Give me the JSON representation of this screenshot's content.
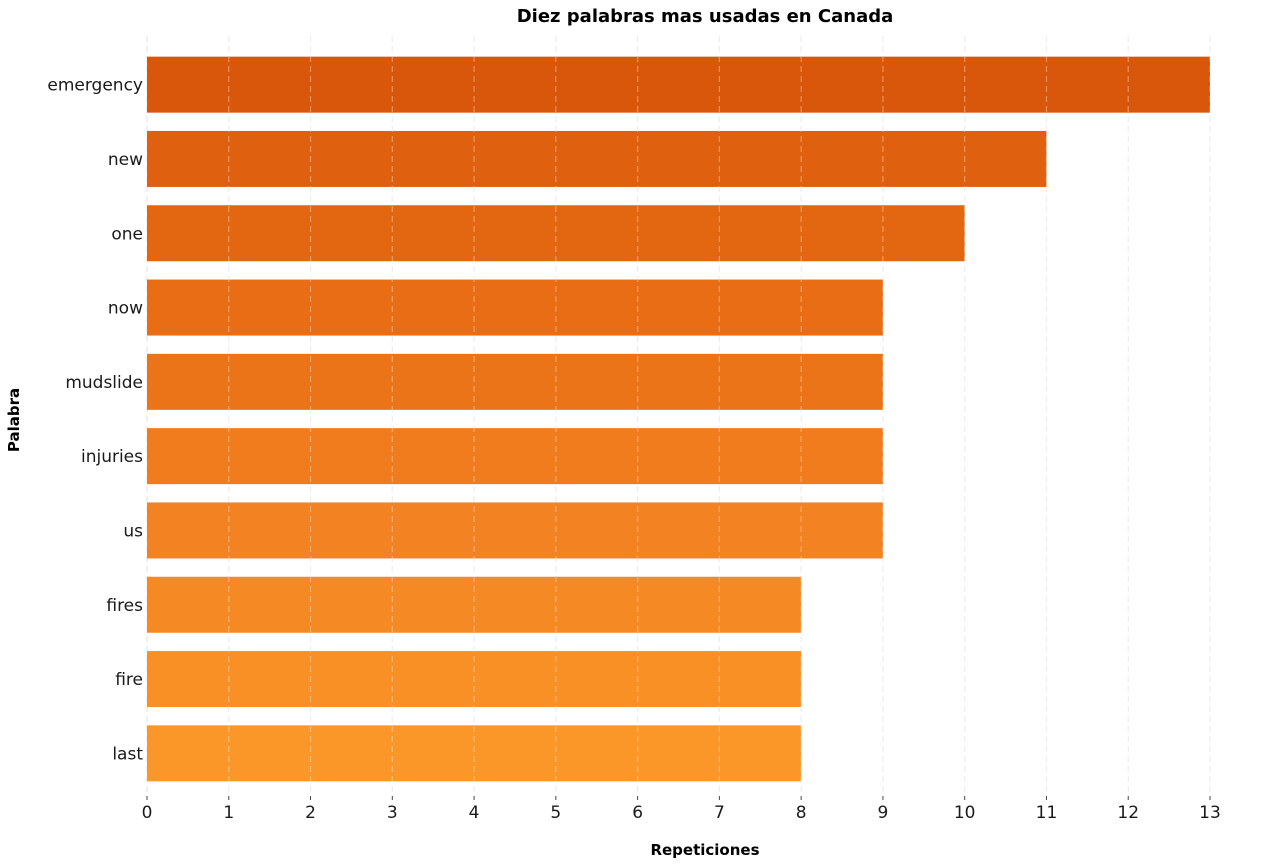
{
  "chart_data": {
    "type": "bar",
    "orientation": "horizontal",
    "title": "Diez palabras mas usadas en Canada",
    "xlabel": "Repeticiones",
    "ylabel": "Palabra",
    "categories": [
      "emergency",
      "new",
      "one",
      "now",
      "mudslide",
      "injuries",
      "us",
      "fires",
      "fire",
      "last"
    ],
    "values": [
      13,
      11,
      10,
      9,
      9,
      9,
      9,
      8,
      8,
      8
    ],
    "xlim": [
      0,
      13
    ],
    "xticks": [
      0,
      1,
      2,
      3,
      4,
      5,
      6,
      7,
      8,
      9,
      10,
      11,
      12,
      13
    ],
    "grid": "vertical-dashed",
    "bar_colors": [
      "#d9570a",
      "#df600e",
      "#e36610",
      "#e86d14",
      "#ec7418",
      "#f07c1e",
      "#f38222",
      "#f58924",
      "#f89026",
      "#fb9729"
    ],
    "legend": "none"
  }
}
